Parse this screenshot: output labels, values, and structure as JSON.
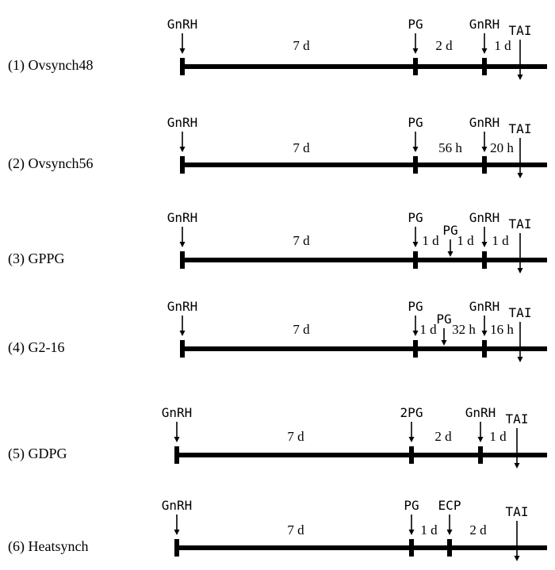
{
  "protocols": [
    {
      "label": "(1) Ovsynch48",
      "markers": [
        {
          "text": "GnRH",
          "type": "tick"
        },
        {
          "text": "PG",
          "type": "tick"
        },
        {
          "text": "GnRH",
          "type": "tick"
        },
        {
          "text": "TAI",
          "type": "below"
        }
      ],
      "durations": [
        "7 d",
        "2 d",
        "1 d"
      ]
    },
    {
      "label": "(2) Ovsynch56",
      "markers": [
        {
          "text": "GnRH",
          "type": "tick"
        },
        {
          "text": "PG",
          "type": "tick"
        },
        {
          "text": "GnRH",
          "type": "tick"
        },
        {
          "text": "TAI",
          "type": "below"
        }
      ],
      "durations": [
        "7 d",
        "56 h",
        "20 h"
      ]
    },
    {
      "label": "(3) GPPG",
      "markers": [
        {
          "text": "GnRH",
          "type": "tick"
        },
        {
          "text": "PG",
          "type": "tick"
        },
        {
          "text": "PG",
          "type": "arrow"
        },
        {
          "text": "GnRH",
          "type": "tick"
        },
        {
          "text": "TAI",
          "type": "below"
        }
      ],
      "durations": [
        "7 d",
        "1 d",
        "1 d",
        "1 d"
      ]
    },
    {
      "label": "(4) G2-16",
      "markers": [
        {
          "text": "GnRH",
          "type": "tick"
        },
        {
          "text": "PG",
          "type": "tick"
        },
        {
          "text": "PG",
          "type": "arrow"
        },
        {
          "text": "GnRH",
          "type": "tick"
        },
        {
          "text": "TAI",
          "type": "below"
        }
      ],
      "durations": [
        "7 d",
        "1 d",
        "32 h",
        "16 h"
      ]
    },
    {
      "label": "(5) GDPG",
      "markers": [
        {
          "text": "GnRH",
          "type": "tick"
        },
        {
          "text": "2PG",
          "type": "tick"
        },
        {
          "text": "GnRH",
          "type": "tick"
        },
        {
          "text": "TAI",
          "type": "below"
        }
      ],
      "durations": [
        "7 d",
        "2 d",
        "1 d"
      ]
    },
    {
      "label": "(6) Heatsynch",
      "markers": [
        {
          "text": "GnRH",
          "type": "tick"
        },
        {
          "text": "PG",
          "type": "tick"
        },
        {
          "text": "ECP",
          "type": "tick"
        },
        {
          "text": "TAI",
          "type": "below"
        }
      ],
      "durations": [
        "7 d",
        "1 d",
        "2 d"
      ]
    }
  ]
}
